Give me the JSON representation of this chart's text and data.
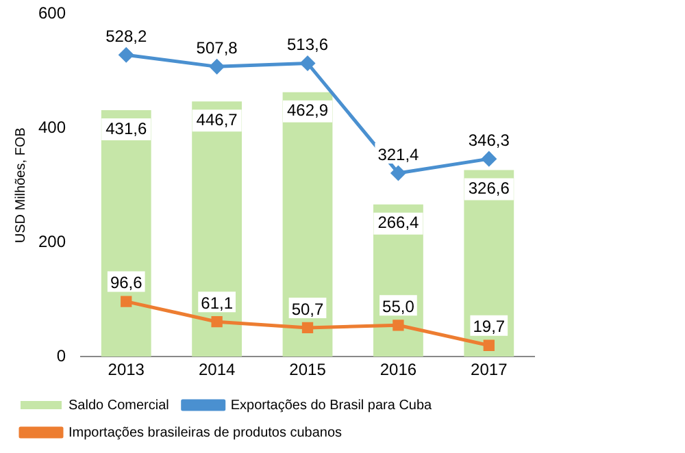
{
  "chart_data": {
    "type": "bar",
    "ylabel": "USD Milhões, FOB",
    "categories": [
      "2013",
      "2014",
      "2015",
      "2016",
      "2017"
    ],
    "series": [
      {
        "name": "Saldo Comercial",
        "color": "#c6e6a8",
        "values": [
          431.6,
          446.7,
          462.9,
          266.4,
          326.6
        ],
        "value_labels": [
          "431,6",
          "446,7",
          "462,9",
          "266,4",
          "326,6"
        ]
      },
      {
        "name": "Exportações do Brasil para Cuba",
        "type": "line",
        "color": "#4a90d0",
        "marker": "diamond",
        "values": [
          528.2,
          507.8,
          513.6,
          321.4,
          346.3
        ],
        "value_labels": [
          "528,2",
          "507,8",
          "513,6",
          "321,4",
          "346,3"
        ]
      },
      {
        "name": "Importações brasileiras de produtos cubanos",
        "type": "line",
        "color": "#ed7d31",
        "marker": "square",
        "values": [
          96.6,
          61.1,
          50.7,
          55.0,
          19.7
        ],
        "value_labels": [
          "96,6",
          "61,1",
          "50,7",
          "55,0",
          "19,7"
        ]
      }
    ],
    "ylim": [
      0,
      600
    ],
    "yticks": [
      0,
      200,
      400,
      600
    ],
    "grid": false,
    "legend": "bottom"
  }
}
